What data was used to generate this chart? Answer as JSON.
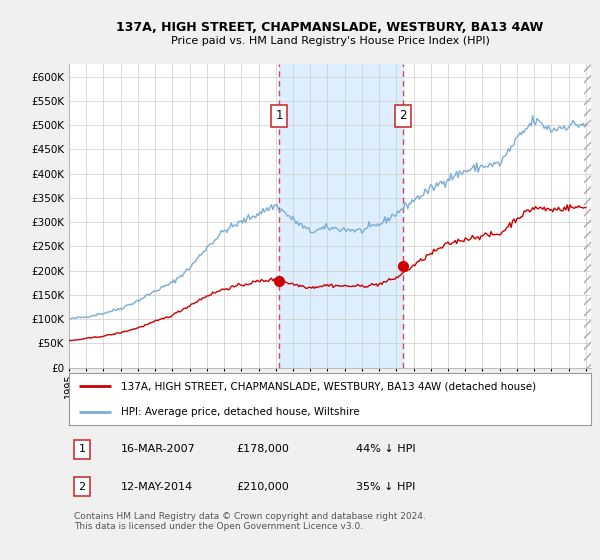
{
  "title": "137A, HIGH STREET, CHAPMANSLADE, WESTBURY, BA13 4AW",
  "subtitle": "Price paid vs. HM Land Registry's House Price Index (HPI)",
  "ytick_vals": [
    0,
    50000,
    100000,
    150000,
    200000,
    250000,
    300000,
    350000,
    400000,
    450000,
    500000,
    550000,
    600000
  ],
  "ylim": [
    0,
    625000
  ],
  "xlim_start": 1995.0,
  "xlim_end": 2025.3,
  "hpi_line_color": "#7aaed6",
  "price_line_color": "#cc0000",
  "shade_color": "#ddeeff",
  "sale1_x": 2007.21,
  "sale1_y": 178000,
  "sale2_x": 2014.37,
  "sale2_y": 210000,
  "legend_label_red": "137A, HIGH STREET, CHAPMANSLADE, WESTBURY, BA13 4AW (detached house)",
  "legend_label_blue": "HPI: Average price, detached house, Wiltshire",
  "table_row1": [
    "1",
    "16-MAR-2007",
    "£178,000",
    "44% ↓ HPI"
  ],
  "table_row2": [
    "2",
    "12-MAY-2014",
    "£210,000",
    "35% ↓ HPI"
  ],
  "footnote": "Contains HM Land Registry data © Crown copyright and database right 2024.\nThis data is licensed under the Open Government Licence v3.0."
}
